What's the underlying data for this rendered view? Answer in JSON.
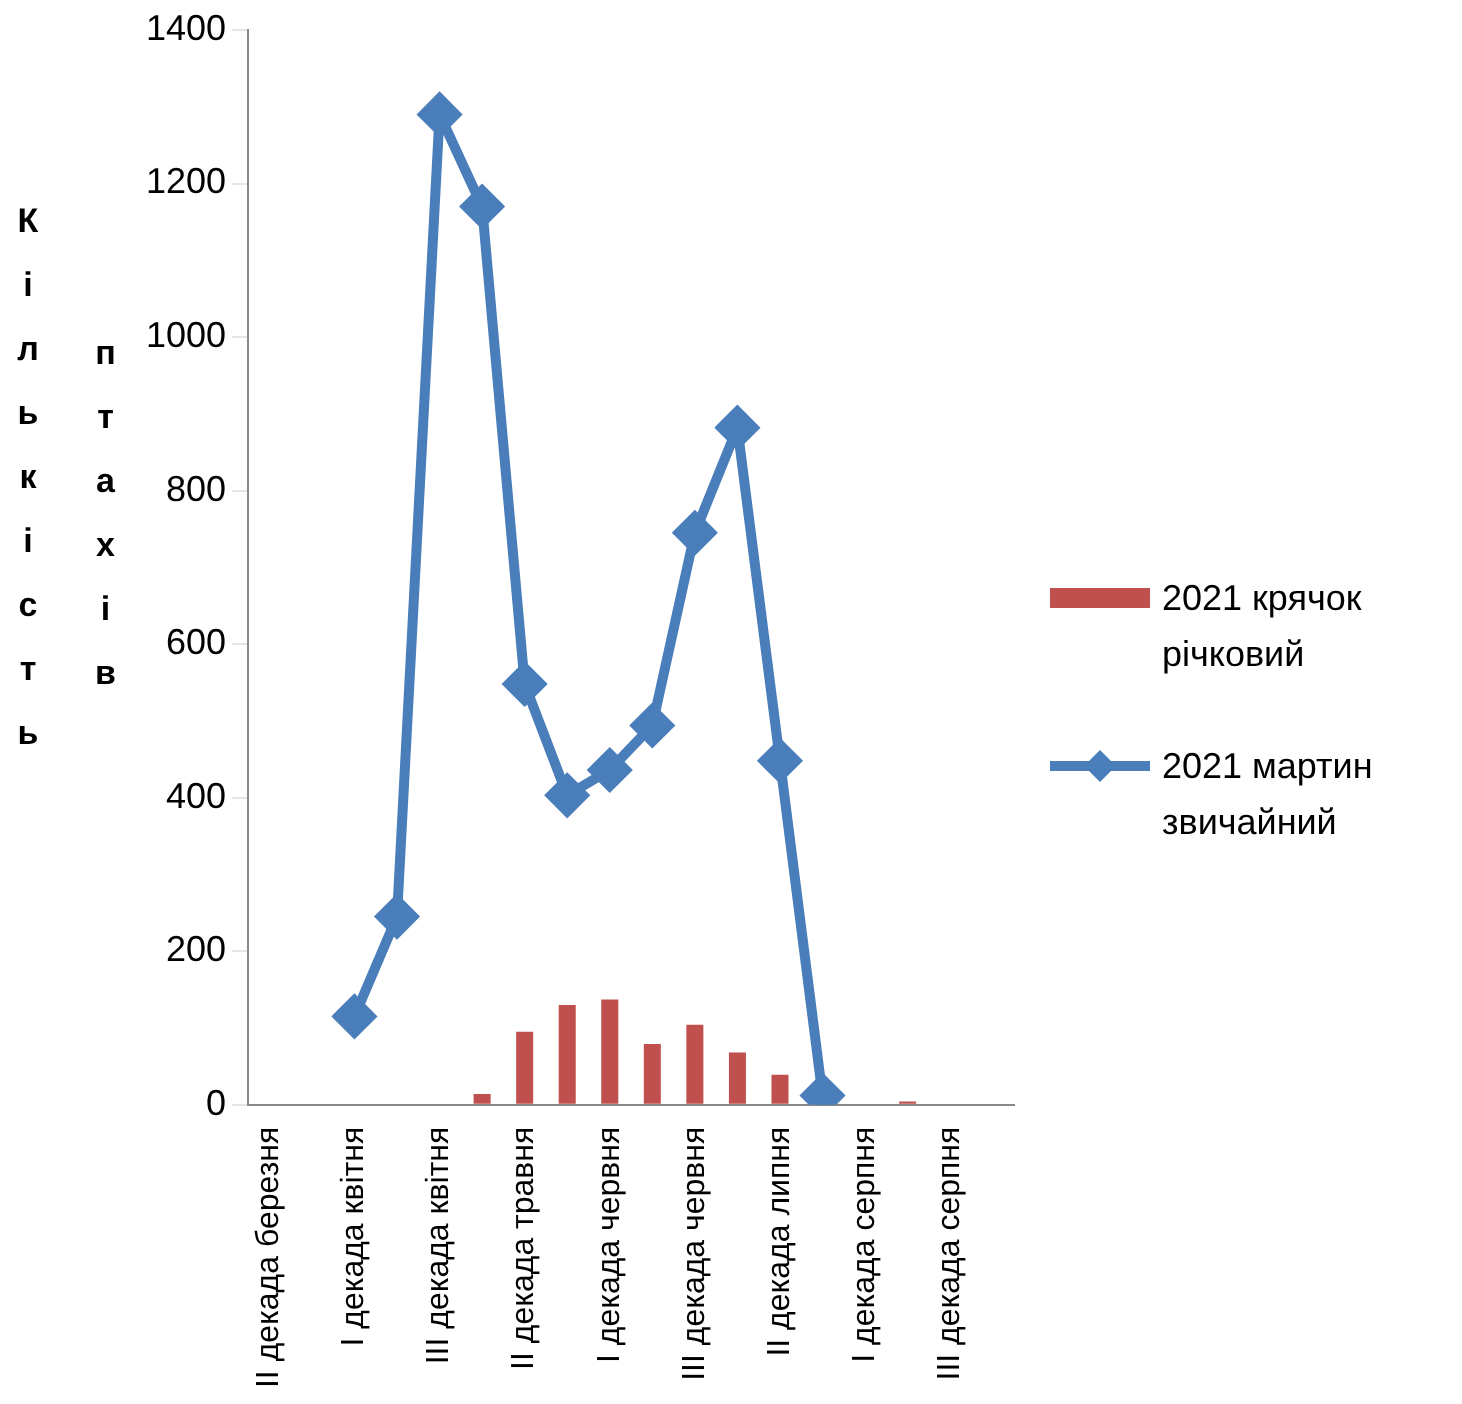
{
  "chart_data": {
    "type": "bar",
    "ylabel": "Кількість птахів",
    "categories": [
      "II декада березня",
      null,
      "I декада квітня",
      null,
      "III декада квітня",
      null,
      "II декада травня",
      null,
      "I декада червня",
      null,
      "III декада червня",
      null,
      "II декада липня",
      null,
      "I декада серпня",
      null,
      "III декада серпня",
      null
    ],
    "series": [
      {
        "name": "2021 крячок річковий",
        "color": "#c0504d",
        "values": [
          0,
          0,
          0,
          0,
          0,
          14,
          95,
          130,
          137,
          79,
          104,
          68,
          39,
          0,
          0,
          4,
          0,
          0
        ]
      },
      {
        "name": "2021 мартин звичайний",
        "type": "line",
        "color": "#4a7ebb",
        "values": [
          null,
          null,
          115,
          245,
          1290,
          1170,
          548,
          403,
          436,
          494,
          745,
          882,
          448,
          12,
          null,
          null,
          null,
          null
        ]
      }
    ],
    "ylim": [
      0,
      1400
    ],
    "yticks": [
      0,
      200,
      400,
      600,
      800,
      1000,
      1200,
      1400
    ],
    "grid": false,
    "legend": "right",
    "marker": "diamond",
    "line_style": "solid"
  }
}
